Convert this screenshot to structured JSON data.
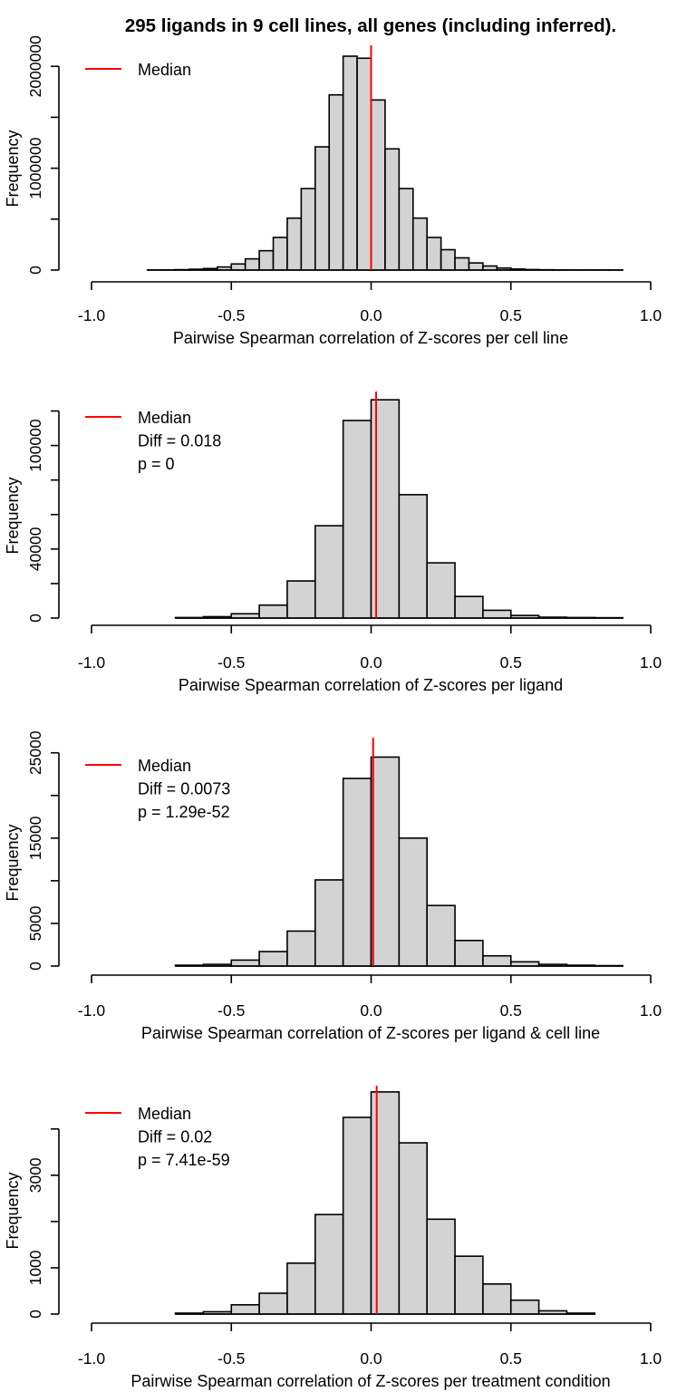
{
  "figure_title": "295 ligands in 9 cell lines, all genes (including inferred).",
  "colors": {
    "bar_fill": "#d3d3d3",
    "bar_stroke": "#000000",
    "median_line": "#ff0000"
  },
  "chart_data": [
    {
      "type": "bar",
      "subtype": "histogram",
      "ylabel": "Frequency",
      "xlabel": "Pairwise Spearman correlation of Z-scores per cell line",
      "xlim": [
        -1.0,
        1.0
      ],
      "xticks": [
        -1.0,
        -0.5,
        0.0,
        0.5,
        1.0
      ],
      "xtick_labels": [
        "-1.0",
        "-0.5",
        "0.0",
        "0.5",
        "1.0"
      ],
      "ylim": [
        0,
        2100000
      ],
      "yticks": [
        0,
        500000,
        1000000,
        1500000,
        2000000
      ],
      "ytick_labels": [
        "0",
        "",
        "1000000",
        "",
        "2000000"
      ],
      "bin_start": -0.8,
      "bin_width": 0.05,
      "counts": [
        1000,
        2000,
        4000,
        8000,
        15000,
        30000,
        60000,
        110000,
        190000,
        320000,
        510000,
        800000,
        1210000,
        1720000,
        2100000,
        2080000,
        1670000,
        1190000,
        800000,
        510000,
        320000,
        200000,
        120000,
        70000,
        40000,
        20000,
        10000,
        5000,
        3000,
        2000,
        1000,
        1000,
        1000,
        1000
      ],
      "median": 0.0,
      "legend": {
        "position": "top-left",
        "lines": [
          "Median"
        ]
      }
    },
    {
      "type": "bar",
      "subtype": "histogram",
      "ylabel": "Frequency",
      "xlabel": "Pairwise Spearman correlation of Z-scores per ligand",
      "xlim": [
        -1.0,
        1.0
      ],
      "xticks": [
        -1.0,
        -0.5,
        0.0,
        0.5,
        1.0
      ],
      "xtick_labels": [
        "-1.0",
        "-0.5",
        "0.0",
        "0.5",
        "1.0"
      ],
      "ylim": [
        0,
        125000
      ],
      "yticks": [
        0,
        20000,
        40000,
        60000,
        80000,
        100000,
        120000
      ],
      "ytick_labels": [
        "0",
        "",
        "40000",
        "",
        "",
        "100000",
        ""
      ],
      "bin_start": -0.7,
      "bin_width": 0.1,
      "counts": [
        300,
        800,
        2500,
        7500,
        21500,
        53500,
        114500,
        126500,
        71500,
        32000,
        12500,
        4500,
        1500,
        500,
        300,
        200
      ],
      "median": 0.018,
      "legend": {
        "position": "top-left",
        "lines": [
          "Median",
          "Diff = 0.018",
          "p = 0"
        ]
      }
    },
    {
      "type": "bar",
      "subtype": "histogram",
      "ylabel": "Frequency",
      "xlabel": "Pairwise Spearman correlation of Z-scores per ligand & cell line",
      "xlim": [
        -1.0,
        1.0
      ],
      "xticks": [
        -1.0,
        -0.5,
        0.0,
        0.5,
        1.0
      ],
      "xtick_labels": [
        "-1.0",
        "-0.5",
        "0.0",
        "0.5",
        "1.0"
      ],
      "ylim": [
        0,
        25500
      ],
      "yticks": [
        0,
        5000,
        10000,
        15000,
        20000,
        25000
      ],
      "ytick_labels": [
        "0",
        "5000",
        "",
        "15000",
        "",
        "25000"
      ],
      "bin_start": -0.7,
      "bin_width": 0.1,
      "counts": [
        100,
        200,
        700,
        1700,
        4100,
        10100,
        22000,
        24500,
        15000,
        7100,
        3000,
        1200,
        500,
        200,
        100,
        50
      ],
      "median": 0.0073,
      "legend": {
        "position": "top-left",
        "lines": [
          "Median",
          "Diff = 0.0073",
          "p = 1.29e-52"
        ]
      }
    },
    {
      "type": "bar",
      "subtype": "histogram",
      "ylabel": "Frequency",
      "xlabel": "Pairwise Spearman correlation of Z-scores per treatment condition",
      "xlim": [
        -1.0,
        1.0
      ],
      "xticks": [
        -1.0,
        -0.5,
        0.0,
        0.5,
        1.0
      ],
      "xtick_labels": [
        "-1.0",
        "-0.5",
        "0.0",
        "0.5",
        "1.0"
      ],
      "ylim": [
        0,
        4700
      ],
      "yticks": [
        0,
        1000,
        2000,
        3000,
        4000
      ],
      "ytick_labels": [
        "0",
        "1000",
        "",
        "3000",
        ""
      ],
      "bin_start": -0.7,
      "bin_width": 0.1,
      "counts": [
        20,
        50,
        200,
        450,
        1100,
        2150,
        4250,
        4800,
        3700,
        2050,
        1250,
        650,
        300,
        70,
        20
      ],
      "median": 0.02,
      "legend": {
        "position": "top-left",
        "lines": [
          "Median",
          "Diff = 0.02",
          "p = 7.41e-59"
        ]
      }
    }
  ]
}
